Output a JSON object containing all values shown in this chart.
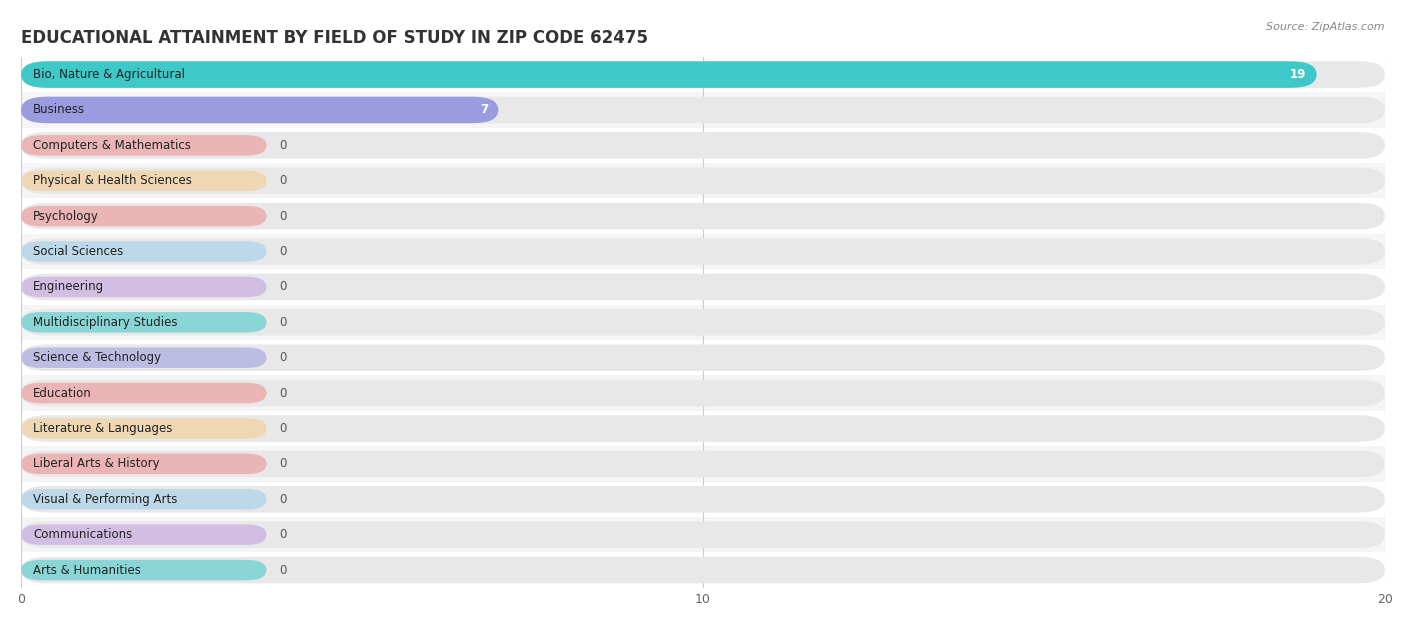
{
  "title": "EDUCATIONAL ATTAINMENT BY FIELD OF STUDY IN ZIP CODE 62475",
  "source": "Source: ZipAtlas.com",
  "categories": [
    "Bio, Nature & Agricultural",
    "Business",
    "Computers & Mathematics",
    "Physical & Health Sciences",
    "Psychology",
    "Social Sciences",
    "Engineering",
    "Multidisciplinary Studies",
    "Science & Technology",
    "Education",
    "Literature & Languages",
    "Liberal Arts & History",
    "Visual & Performing Arts",
    "Communications",
    "Arts & Humanities"
  ],
  "values": [
    19,
    7,
    0,
    0,
    0,
    0,
    0,
    0,
    0,
    0,
    0,
    0,
    0,
    0,
    0
  ],
  "bar_colors": [
    "#3ec8c8",
    "#9b9be0",
    "#f08b8b",
    "#f5ca8a",
    "#f08b8b",
    "#9acce8",
    "#c09de0",
    "#3ec8c8",
    "#9b9be0",
    "#f08b8b",
    "#f5ca8a",
    "#f08b8b",
    "#9acce8",
    "#c09de0",
    "#3ec8c8"
  ],
  "xlim": [
    0,
    20
  ],
  "xticks": [
    0,
    10,
    20
  ],
  "background_color": "#ffffff",
  "bar_bg_color": "#e8e8e8",
  "row_alt_color": "#f5f5f5",
  "title_fontsize": 12,
  "label_fontsize": 8.5,
  "value_fontsize": 8.5
}
